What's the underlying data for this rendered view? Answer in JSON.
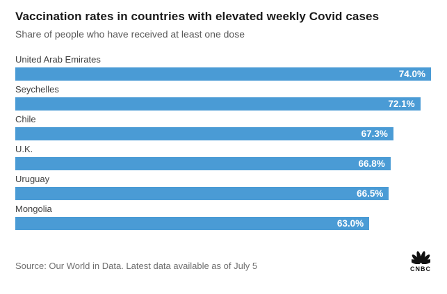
{
  "chart_data": {
    "type": "bar",
    "orientation": "horizontal",
    "title": "Vaccination rates in countries with elevated weekly Covid cases",
    "subtitle": "Share of people who have received at least one dose",
    "categories": [
      "United Arab Emirates",
      "Seychelles",
      "Chile",
      "U.K.",
      "Uruguay",
      "Mongolia"
    ],
    "values": [
      74.0,
      72.1,
      67.3,
      66.8,
      66.5,
      63.0
    ],
    "value_labels": [
      "74.0%",
      "72.1%",
      "67.3%",
      "66.8%",
      "66.5%",
      "63.0%"
    ],
    "unit": "%",
    "xlim": [
      0,
      74
    ],
    "grid": false,
    "legend": false,
    "value_label_position": "inside-end",
    "source": "Source: Our World in Data. Latest data available as of July 5"
  },
  "footer": {
    "brand": "CNBC"
  },
  "colors": {
    "bar": "#4a9bd5",
    "title": "#1a1a1a",
    "subtitle": "#595959",
    "category_label": "#404040",
    "value_text": "#ffffff",
    "source_text": "#6e6e6e",
    "logo": "#111111"
  }
}
